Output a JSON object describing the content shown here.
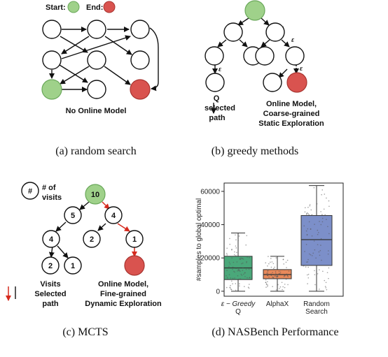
{
  "panel_a": {
    "start_label": "Start:",
    "end_label": "End:",
    "note": "No Online Model",
    "caption": "(a) random search"
  },
  "panel_b": {
    "epsilon": "ε",
    "legend_q": "Q",
    "legend_selected": "selected",
    "legend_path": "path",
    "note_line1": "Online Model,",
    "note_line2": "Coarse-grained",
    "note_line3": "Static Exploration",
    "caption": "(b) greedy methods"
  },
  "panel_c": {
    "legend_hash": "#",
    "legend_of": "# of",
    "legend_visits": "visits",
    "root_visits": "10",
    "node_visits": [
      "5",
      "4",
      "4",
      "2",
      "1",
      "2",
      "1"
    ],
    "legend_visits_word": "Visits",
    "legend_selected": "Selected",
    "legend_path": "path",
    "note_line1": "Online Model,",
    "note_line2": "Fine-grained",
    "note_line3": "Dynamic Exploration",
    "caption": "(c) MCTS"
  },
  "colors": {
    "start": "#9fd18a",
    "end": "#d9534f",
    "box_green": "#4aa87a",
    "box_orange": "#e8895a",
    "box_blue": "#7c8fc9",
    "selected_arrow": "#d62a1e"
  },
  "chart_data": {
    "type": "box",
    "ylabel": "#samples to global optimal",
    "categories": [
      "ε − Greedy Q",
      "AlphaX",
      "Random Search"
    ],
    "category_lines": [
      [
        "ε − Greedy",
        "Q"
      ],
      [
        "AlphaX"
      ],
      [
        "Random",
        "Search"
      ]
    ],
    "ylim": [
      -3000,
      65000
    ],
    "yticks": [
      "0",
      "20000",
      "40000",
      "60000"
    ],
    "yticks_values": [
      0,
      20000,
      40000,
      60000
    ],
    "boxes": [
      {
        "name": "ε − Greedy Q",
        "min": 0,
        "q1": 7000,
        "median": 14000,
        "q3": 21000,
        "max": 35000
      },
      {
        "name": "AlphaX",
        "min": 0,
        "q1": 7500,
        "median": 10000,
        "q3": 13000,
        "max": 21000
      },
      {
        "name": "Random Search",
        "min": 0,
        "q1": 15500,
        "median": 31000,
        "q3": 45500,
        "max": 63500
      }
    ],
    "caption": "(d) NASBench Performance"
  }
}
